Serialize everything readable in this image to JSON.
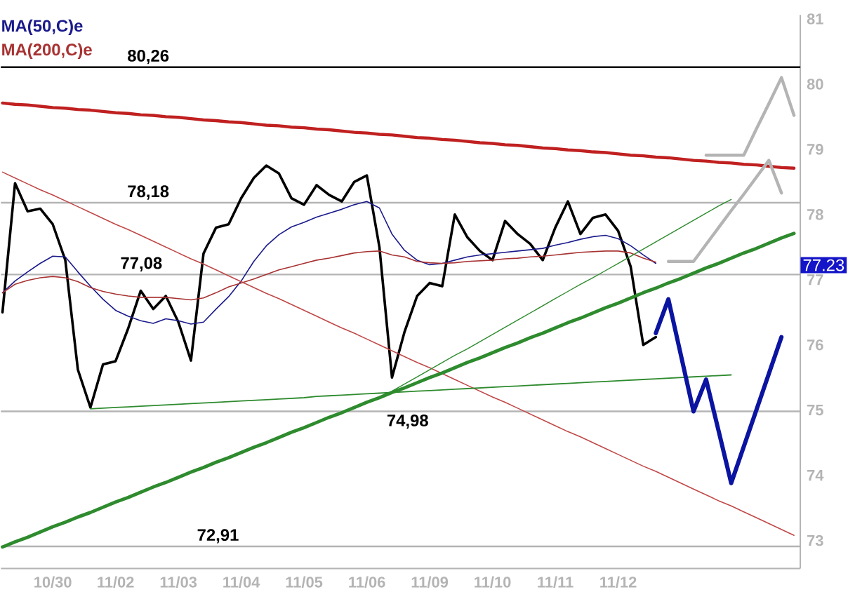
{
  "chart_data": {
    "type": "line",
    "categories": [
      null,
      null,
      null,
      null,
      "10/30",
      null,
      null,
      null,
      null,
      "11/02",
      null,
      null,
      null,
      null,
      "11/03",
      null,
      null,
      null,
      null,
      "11/04",
      null,
      null,
      null,
      null,
      "11/05",
      null,
      null,
      null,
      null,
      "11/06",
      null,
      null,
      null,
      null,
      "11/09",
      null,
      null,
      null,
      null,
      "11/10",
      null,
      null,
      null,
      null,
      "11/11",
      null,
      null,
      null,
      null,
      "11/12",
      null,
      null,
      null,
      null,
      null,
      null,
      null,
      null,
      null,
      null,
      null,
      null,
      null,
      null
    ],
    "ylim": [
      72.57,
      81.06
    ],
    "yticks": [
      73,
      74,
      75,
      76,
      77,
      78,
      79,
      80,
      81
    ],
    "legend": "top left",
    "series": [
      {
        "color": "#000000",
        "values": [
          76.5,
          78.48,
          78.05,
          78.09,
          77.85,
          77.3,
          75.62,
          75.04,
          75.7,
          75.75,
          76.25,
          76.83,
          76.55,
          76.75,
          76.35,
          75.76,
          77.4,
          77.8,
          77.85,
          78.25,
          78.56,
          78.75,
          78.63,
          78.25,
          78.15,
          78.45,
          78.3,
          78.2,
          78.5,
          78.6,
          77.5,
          75.5,
          76.2,
          76.75,
          76.95,
          76.9,
          78.0,
          77.65,
          77.44,
          77.3,
          77.9,
          77.7,
          77.55,
          77.3,
          77.8,
          78.2,
          77.7,
          77.95,
          78.0,
          77.75,
          77.2,
          76.0,
          76.12,
          null,
          null,
          null,
          null,
          null,
          null,
          null,
          null,
          null,
          null,
          null
        ]
      },
      {
        "name": "MA(50,C)e",
        "color": "#1a1a8c",
        "values": [
          76.8,
          76.98,
          77.12,
          77.25,
          77.36,
          77.35,
          77.12,
          76.9,
          76.7,
          76.53,
          76.44,
          76.37,
          76.33,
          76.4,
          76.37,
          76.32,
          76.35,
          76.55,
          76.74,
          76.98,
          77.28,
          77.52,
          77.69,
          77.81,
          77.88,
          77.96,
          78.02,
          78.08,
          78.15,
          78.2,
          78.1,
          77.7,
          77.45,
          77.3,
          77.23,
          77.25,
          77.3,
          77.35,
          77.38,
          77.4,
          77.42,
          77.44,
          77.46,
          77.48,
          77.53,
          77.57,
          77.62,
          77.66,
          77.68,
          77.63,
          77.52,
          77.38,
          77.25,
          null,
          null,
          null,
          null,
          null,
          null,
          null,
          null,
          null,
          null,
          null
        ]
      },
      {
        "name": "MA(200,C)e",
        "color": "#a83232",
        "values": [
          76.8,
          76.93,
          76.99,
          77.03,
          77.05,
          77.03,
          76.97,
          76.88,
          76.82,
          76.78,
          76.75,
          76.73,
          76.73,
          76.73,
          76.71,
          76.69,
          76.72,
          76.8,
          76.89,
          76.95,
          77.01,
          77.08,
          77.15,
          77.2,
          77.25,
          77.3,
          77.33,
          77.37,
          77.41,
          77.43,
          77.44,
          77.38,
          77.35,
          77.28,
          77.26,
          77.25,
          77.26,
          77.28,
          77.29,
          77.3,
          77.32,
          77.33,
          77.35,
          77.36,
          77.38,
          77.4,
          77.42,
          77.43,
          77.44,
          77.44,
          77.41,
          77.33,
          77.27,
          null,
          null,
          null,
          null,
          null,
          null,
          null,
          null,
          null,
          null,
          null
        ]
      },
      {
        "color": "#c02020",
        "values": [
          79.71,
          79.69,
          79.68,
          79.66,
          79.64,
          79.63,
          79.61,
          79.6,
          79.58,
          79.56,
          79.55,
          79.53,
          79.52,
          79.5,
          79.49,
          79.47,
          79.45,
          79.44,
          79.42,
          79.41,
          79.39,
          79.37,
          79.36,
          79.34,
          79.33,
          79.31,
          79.3,
          79.28,
          79.26,
          79.25,
          79.23,
          79.22,
          79.2,
          79.18,
          79.17,
          79.15,
          79.14,
          79.12,
          79.1,
          79.09,
          79.07,
          79.06,
          79.04,
          79.02,
          79.01,
          78.99,
          78.98,
          78.96,
          78.95,
          78.93,
          78.91,
          78.9,
          78.88,
          78.87,
          78.85,
          78.83,
          78.82,
          78.8,
          78.79,
          78.77,
          78.76,
          78.74,
          78.72,
          78.71
        ]
      },
      {
        "color": "#c04848",
        "values": [
          78.65,
          78.56,
          78.47,
          78.38,
          78.3,
          78.21,
          78.12,
          78.03,
          77.94,
          77.85,
          77.77,
          77.68,
          77.59,
          77.5,
          77.41,
          77.32,
          77.24,
          77.15,
          77.06,
          76.97,
          76.88,
          76.79,
          76.71,
          76.62,
          76.53,
          76.44,
          76.35,
          76.26,
          76.18,
          76.09,
          76.0,
          75.91,
          75.82,
          75.73,
          75.65,
          75.56,
          75.47,
          75.38,
          75.29,
          75.2,
          75.12,
          75.03,
          74.94,
          74.85,
          74.76,
          74.67,
          74.59,
          74.5,
          74.41,
          74.32,
          74.23,
          74.14,
          74.06,
          73.97,
          73.88,
          73.79,
          73.7,
          73.61,
          73.53,
          73.44,
          73.35,
          73.26,
          73.17,
          73.08
        ]
      },
      {
        "color": "#2e8b2e",
        "values": [
          72.9,
          72.98,
          73.05,
          73.13,
          73.21,
          73.28,
          73.36,
          73.43,
          73.51,
          73.59,
          73.66,
          73.74,
          73.82,
          73.89,
          73.97,
          74.05,
          74.12,
          74.2,
          74.27,
          74.35,
          74.43,
          74.5,
          74.58,
          74.66,
          74.73,
          74.81,
          74.89,
          74.96,
          75.04,
          75.12,
          75.19,
          75.27,
          75.34,
          75.42,
          75.5,
          75.57,
          75.65,
          75.73,
          75.8,
          75.88,
          75.96,
          76.03,
          76.11,
          76.18,
          76.26,
          76.34,
          76.41,
          76.49,
          76.57,
          76.64,
          76.72,
          76.8,
          76.87,
          76.95,
          77.02,
          77.1,
          77.18,
          77.25,
          77.33,
          77.41,
          77.48,
          77.56,
          77.64,
          77.71
        ]
      },
      {
        "color": "#2e8b2e",
        "values": [
          null,
          null,
          null,
          null,
          null,
          null,
          null,
          null,
          null,
          null,
          null,
          null,
          null,
          null,
          null,
          null,
          null,
          null,
          null,
          null,
          null,
          null,
          null,
          null,
          null,
          null,
          null,
          null,
          null,
          null,
          null,
          75.29,
          75.4,
          75.51,
          75.62,
          75.73,
          75.84,
          75.94,
          76.05,
          76.16,
          76.27,
          76.38,
          76.49,
          76.6,
          76.71,
          76.82,
          76.93,
          77.03,
          77.14,
          77.25,
          77.36,
          77.47,
          77.58,
          77.69,
          77.8,
          77.91,
          78.02,
          78.13,
          78.23,
          null,
          null,
          null,
          null,
          null
        ]
      },
      {
        "color": "#2e8b2e",
        "values": [
          null,
          null,
          null,
          null,
          null,
          null,
          null,
          75.02,
          75.03,
          75.04,
          75.05,
          75.06,
          75.07,
          75.08,
          75.09,
          75.1,
          75.11,
          75.12,
          75.13,
          75.14,
          75.15,
          75.16,
          75.17,
          75.18,
          75.19,
          75.21,
          75.22,
          75.23,
          75.24,
          75.25,
          75.26,
          75.27,
          75.28,
          75.29,
          75.3,
          75.31,
          75.32,
          75.33,
          75.34,
          75.35,
          75.36,
          75.37,
          75.38,
          75.39,
          75.4,
          75.41,
          75.42,
          75.43,
          75.44,
          75.45,
          75.46,
          75.47,
          75.48,
          75.49,
          75.5,
          75.51,
          75.52,
          75.53,
          75.54,
          null,
          null,
          null,
          null,
          null
        ]
      },
      {
        "color": "#0a14a0",
        "values": [
          null,
          null,
          null,
          null,
          null,
          null,
          null,
          null,
          null,
          null,
          null,
          null,
          null,
          null,
          null,
          null,
          null,
          null,
          null,
          null,
          null,
          null,
          null,
          null,
          null,
          null,
          null,
          null,
          null,
          null,
          null,
          null,
          null,
          null,
          null,
          null,
          null,
          null,
          null,
          null,
          null,
          null,
          null,
          null,
          null,
          null,
          null,
          null,
          null,
          null,
          null,
          null,
          76.18,
          76.7,
          75.84,
          74.98,
          75.47,
          74.68,
          73.88,
          74.44,
          75.0,
          75.56,
          76.12,
          null
        ]
      },
      {
        "color": "#b4b4b4",
        "values": [
          null,
          null,
          null,
          null,
          null,
          null,
          null,
          null,
          null,
          null,
          null,
          null,
          null,
          null,
          null,
          null,
          null,
          null,
          null,
          null,
          null,
          null,
          null,
          null,
          null,
          null,
          null,
          null,
          null,
          null,
          null,
          null,
          null,
          null,
          null,
          null,
          null,
          null,
          null,
          null,
          null,
          null,
          null,
          null,
          null,
          null,
          null,
          null,
          null,
          null,
          null,
          null,
          null,
          null,
          null,
          null,
          78.91,
          78.91,
          78.91,
          78.91,
          79.31,
          79.7,
          80.1,
          79.52
        ]
      },
      {
        "color": "#b4b4b4",
        "values": [
          null,
          null,
          null,
          null,
          null,
          null,
          null,
          null,
          null,
          null,
          null,
          null,
          null,
          null,
          null,
          null,
          null,
          null,
          null,
          null,
          null,
          null,
          null,
          null,
          null,
          null,
          null,
          null,
          null,
          null,
          null,
          null,
          null,
          null,
          null,
          null,
          null,
          null,
          null,
          null,
          null,
          null,
          null,
          null,
          null,
          null,
          null,
          null,
          null,
          null,
          null,
          null,
          null,
          77.28,
          77.28,
          77.28,
          77.54,
          77.8,
          78.06,
          78.31,
          78.57,
          78.83,
          78.33,
          null
        ]
      }
    ],
    "ref_lines": [
      {
        "axis": "y",
        "value": 80.26,
        "label": "80,26",
        "color": "#000000"
      },
      {
        "axis": "y",
        "value": 78.18,
        "label": "78,18",
        "color": "#b4b4b4"
      },
      {
        "axis": "y",
        "value": 77.08,
        "label": "77,08",
        "color": "#b4b4b4"
      },
      {
        "axis": "y",
        "value": 74.98,
        "label": "74,98",
        "color": "#b4b4b4"
      },
      {
        "axis": "y",
        "value": 72.91,
        "label": "72,91",
        "color": "#b4b4b4"
      }
    ],
    "annotations": [
      "77.23"
    ]
  }
}
